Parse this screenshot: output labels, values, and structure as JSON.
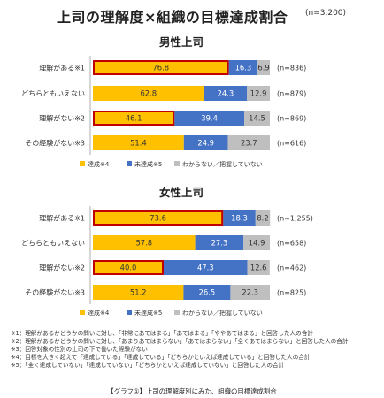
{
  "page": {
    "title": "上司の理解度×組織の目標達成割合",
    "n_total": "(n=3,200)",
    "footnotes": [
      "※1：理解があるかどうかの問いに対し、「非常にあてはまる」「あてはまる」「ややあてはまる」と回答した人の合計",
      "※2：理解があるかどうかの問いに対し、「あまりあてはまらない」「あてはまらない」「全くあてはまらない」と回答した人の合計",
      "※3：回答対象の性別の上司の下で働いた経験がない",
      "※4：目標を大きく超えて「達成している」「達成している」「どちらかといえば達成している」と回答した人の合計",
      "※5：「全く達成していない」「達成していない」「どちらかといえば達成していない」と回答した人の合計"
    ],
    "caption": "【グラフ①】上司の理解度別にみた、組織の目標達成割合"
  },
  "colors": {
    "achieved": "#FFC000",
    "not_achieved": "#4472C4",
    "unknown": "#BFBFBF",
    "highlight_border": "#C00000"
  },
  "chart_data": [
    {
      "type": "bar",
      "orientation": "horizontal",
      "stacked": true,
      "title": "男性上司",
      "categories": [
        "理解がある※1",
        "どちらともいえない",
        "理解がない※2",
        "その経験がない※3"
      ],
      "n_labels": [
        "(n=836)",
        "(n=879)",
        "(n=869)",
        "(n=616)"
      ],
      "series": [
        {
          "name": "達成※4",
          "values": [
            76.8,
            62.8,
            46.1,
            51.4
          ]
        },
        {
          "name": "未達成※5",
          "values": [
            16.3,
            24.3,
            39.4,
            24.9
          ]
        },
        {
          "name": "わからない／把握していない",
          "values": [
            6.9,
            12.9,
            14.5,
            23.7
          ]
        }
      ],
      "highlighted_categories": [
        "理解がある※1",
        "理解がない※2"
      ],
      "legend_position": "bottom"
    },
    {
      "type": "bar",
      "orientation": "horizontal",
      "stacked": true,
      "title": "女性上司",
      "categories": [
        "理解がある※1",
        "どちらともいえない",
        "理解がない※2",
        "その経験がない※3"
      ],
      "n_labels": [
        "(n=1,255)",
        "(n=658)",
        "(n=462)",
        "(n=825)"
      ],
      "series": [
        {
          "name": "達成※4",
          "values": [
            73.6,
            57.8,
            40.0,
            51.2
          ]
        },
        {
          "name": "未達成※5",
          "values": [
            18.3,
            27.3,
            47.3,
            26.5
          ]
        },
        {
          "name": "わからない／把握していない",
          "values": [
            8.2,
            14.9,
            12.6,
            22.3
          ]
        }
      ],
      "highlighted_categories": [
        "理解がある※1",
        "理解がない※2"
      ],
      "legend_position": "bottom"
    }
  ]
}
